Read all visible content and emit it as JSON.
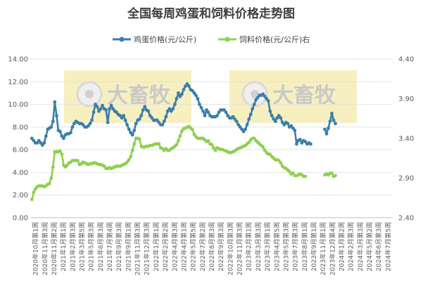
{
  "chart_data": {
    "type": "line",
    "title": "全国每周鸡蛋和饲料价格走势图",
    "watermark": "大畜牧",
    "legend_position": "top",
    "grid": true,
    "y_left": {
      "ylim": [
        0,
        14
      ],
      "ticks": [
        "0.00",
        "2.00",
        "4.00",
        "6.00",
        "8.00",
        "10.00",
        "12.00",
        "14.00"
      ]
    },
    "y_right": {
      "ylim": [
        2.4,
        4.4
      ],
      "ticks": [
        "2.40",
        "2.90",
        "3.40",
        "3.90",
        "4.40"
      ]
    },
    "x_labels": [
      "2020年10月第1周",
      "2020年11月第3周",
      "2020年11月第2周",
      "2021年1月第1周",
      "2021年2月第3周",
      "2021年3月第5周",
      "2021年5月第3周",
      "2021年6月第3周",
      "2021年7月第4周",
      "2021年9月第3周",
      "2021年9月第1周",
      "2021年11月第3周",
      "2021年12月第3周",
      "2022年1月第1周",
      "2022年2月第2周",
      "2022年4月第3周",
      "2022年4月第1周",
      "2022年5月第5周",
      "2022年7月第2周",
      "2022年8月第3周",
      "2022年9月第3周",
      "2022年10月第3周",
      "2022年11月第3周",
      "2023年2月第1周",
      "2023年3月第3周",
      "2023年3月第1周",
      "2023年4月第5周",
      "2023年5月第3周",
      "2023年7月第3周",
      "2023年8月第1周",
      "2023年9月第1周",
      "2023年11月第1周",
      "2023年12月第4周",
      "2024年1月第2周",
      "2024年2月第3周",
      "2024年3月第3周",
      "2024年5月第2周",
      "2024年6月第3周",
      "2024年7月第5周"
    ],
    "n_points": 205,
    "series": [
      {
        "name": "鸡蛋价格(元/公斤)",
        "axis": "left",
        "color": "#3a7eaa",
        "values": [
          7.0,
          6.8,
          6.6,
          6.6,
          6.8,
          6.6,
          6.4,
          6.6,
          7.2,
          7.8,
          7.9,
          8.0,
          8.5,
          10.2,
          9.0,
          7.7,
          7.6,
          7.2,
          7.0,
          7.3,
          7.4,
          7.4,
          7.5,
          8.0,
          8.3,
          8.5,
          8.4,
          8.3,
          8.3,
          8.2,
          8.0,
          8.0,
          8.1,
          8.3,
          8.6,
          9.3,
          10.0,
          9.8,
          9.4,
          9.6,
          9.9,
          9.6,
          9.5,
          8.4,
          9.6,
          9.9,
          9.6,
          9.4,
          9.3,
          9.1,
          9.0,
          8.8,
          9.0,
          8.6,
          8.2,
          7.8,
          7.5,
          7.3,
          7.7,
          8.3,
          8.6,
          8.7,
          9.0,
          9.5,
          9.8,
          9.5,
          9.4,
          9.0,
          8.8,
          8.6,
          8.6,
          8.6,
          8.4,
          8.2,
          8.2,
          8.5,
          8.9,
          9.4,
          9.6,
          9.4,
          9.6,
          10.0,
          10.5,
          11.0,
          10.7,
          10.9,
          11.3,
          11.6,
          11.8,
          11.6,
          11.3,
          11.2,
          11.0,
          10.8,
          10.5,
          10.0,
          9.7,
          9.4,
          9.0,
          9.5,
          9.3,
          9.0,
          8.9,
          8.9,
          8.9,
          9.0,
          9.3,
          9.5,
          9.5,
          9.5,
          9.3,
          9.0,
          8.8,
          8.8,
          8.9,
          8.7,
          8.5,
          8.2,
          8.0,
          7.8,
          7.6,
          7.8,
          8.2,
          8.7,
          9.1,
          9.6,
          10.0,
          10.4,
          10.6,
          10.8,
          10.8,
          10.9,
          10.7,
          10.5,
          10.3,
          9.4,
          9.0,
          8.7,
          8.5,
          8.8,
          9.0,
          8.8,
          8.4,
          8.2,
          8.4,
          8.3,
          8.0,
          8.1,
          7.9,
          7.7,
          6.5,
          6.8,
          6.9,
          6.6,
          6.8,
          6.7,
          6.5,
          6.6,
          6.5,
          null,
          null,
          null,
          null,
          null,
          null,
          null,
          7.8,
          7.4,
          7.9,
          8.5,
          9.2,
          8.6,
          8.3,
          null,
          null,
          null,
          null,
          null,
          null,
          null,
          null,
          null,
          null,
          null,
          null,
          null,
          null,
          null,
          null,
          null,
          null,
          null,
          null,
          null,
          null,
          null,
          null,
          null,
          null,
          null,
          null,
          null,
          null,
          null,
          null,
          null,
          null,
          null,
          null,
          null
        ],
        "values_note_visible_only": true
      },
      {
        "name": "饲料价格(元/公斤)右",
        "axis": "right",
        "color": "#8fcf4f",
        "values": [
          2.63,
          2.72,
          2.76,
          2.79,
          2.8,
          2.8,
          2.8,
          2.79,
          2.8,
          2.82,
          2.83,
          2.9,
          3.04,
          3.23,
          3.23,
          3.23,
          3.24,
          3.2,
          3.06,
          3.04,
          3.06,
          3.09,
          3.1,
          3.12,
          3.12,
          3.12,
          3.12,
          3.07,
          3.08,
          3.1,
          3.09,
          3.08,
          3.07,
          3.08,
          3.08,
          3.09,
          3.09,
          3.08,
          3.07,
          3.07,
          3.06,
          3.05,
          3.02,
          3.02,
          3.03,
          3.02,
          3.03,
          3.04,
          3.05,
          3.05,
          3.05,
          3.06,
          3.07,
          3.08,
          3.1,
          3.13,
          3.17,
          3.25,
          3.33,
          3.4,
          3.4,
          3.39,
          3.3,
          3.29,
          3.29,
          3.3,
          3.3,
          3.31,
          3.31,
          3.32,
          3.33,
          3.33,
          3.33,
          3.28,
          3.27,
          3.25,
          3.27,
          3.25,
          3.25,
          3.27,
          3.28,
          3.3,
          3.32,
          3.37,
          3.43,
          3.49,
          3.52,
          3.53,
          3.54,
          3.55,
          3.53,
          3.51,
          3.45,
          3.42,
          3.4,
          3.4,
          3.4,
          3.4,
          3.38,
          3.36,
          3.37,
          3.33,
          3.32,
          3.28,
          3.25,
          3.28,
          3.27,
          3.26,
          3.26,
          3.25,
          3.24,
          3.23,
          3.22,
          3.22,
          3.23,
          3.24,
          3.26,
          3.27,
          3.28,
          3.29,
          3.3,
          3.31,
          3.33,
          3.35,
          3.38,
          3.4,
          3.4,
          3.37,
          3.35,
          3.33,
          3.31,
          3.29,
          3.25,
          3.22,
          3.2,
          3.2,
          3.17,
          3.15,
          3.13,
          3.13,
          3.12,
          3.09,
          3.05,
          3.03,
          3.02,
          3.0,
          2.98,
          2.95,
          2.96,
          2.93,
          2.93,
          2.94,
          2.95,
          2.94,
          2.92,
          2.92,
          null,
          null,
          null,
          null,
          null,
          null,
          null,
          null,
          null,
          null,
          2.94,
          2.95,
          2.94,
          2.96,
          2.96,
          2.92,
          2.93,
          null,
          null,
          null,
          null,
          null,
          null,
          null,
          null,
          null,
          null,
          null,
          null,
          null,
          null,
          null,
          null,
          null,
          null,
          null,
          null,
          null,
          null,
          null,
          null,
          null,
          null,
          null,
          null,
          null,
          null,
          null,
          null,
          null,
          null,
          null,
          null
        ]
      }
    ]
  }
}
